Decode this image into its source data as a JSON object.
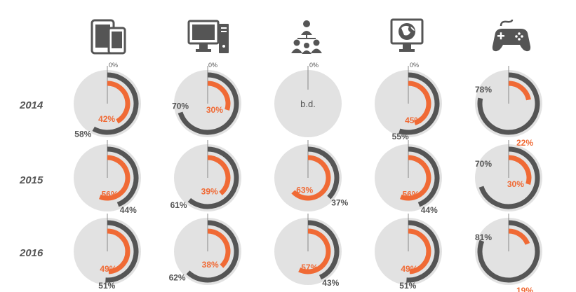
{
  "chart_data": {
    "type": "donut-grid",
    "years": [
      "2014",
      "2015",
      "2016"
    ],
    "columns": [
      {
        "icon": "smartphone-tablet-icon"
      },
      {
        "icon": "desktop-computer-icon"
      },
      {
        "icon": "organization-chart-icon"
      },
      {
        "icon": "monitor-globe-icon"
      },
      {
        "icon": "gamepad-icon"
      }
    ],
    "zero_label": "0%",
    "no_data_label": "b.d.",
    "cells": [
      [
        {
          "orange": 42,
          "dark": 58,
          "orange_label": "42%",
          "dark_label": "58%"
        },
        {
          "orange": 30,
          "dark": 70,
          "orange_label": "30%",
          "dark_label": "70%"
        },
        {
          "no_data": true
        },
        {
          "orange": 45,
          "dark": 55,
          "orange_label": "45%",
          "dark_label": "55%"
        },
        {
          "orange": 22,
          "dark": 78,
          "orange_label": "22%",
          "dark_label": "78%"
        }
      ],
      [
        {
          "orange": 56,
          "dark": 44,
          "orange_label": "56%",
          "dark_label": "44%"
        },
        {
          "orange": 39,
          "dark": 61,
          "orange_label": "39%",
          "dark_label": "61%"
        },
        {
          "orange": 63,
          "dark": 37,
          "orange_label": "63%",
          "dark_label": "37%"
        },
        {
          "orange": 56,
          "dark": 44,
          "orange_label": "56%",
          "dark_label": "44%"
        },
        {
          "orange": 30,
          "dark": 70,
          "orange_label": "30%",
          "dark_label": "70%"
        }
      ],
      [
        {
          "orange": 49,
          "dark": 51,
          "orange_label": "49%",
          "dark_label": "51%"
        },
        {
          "orange": 38,
          "dark": 62,
          "orange_label": "38%",
          "dark_label": "62%"
        },
        {
          "orange": 57,
          "dark": 43,
          "orange_label": "57%",
          "dark_label": "43%"
        },
        {
          "orange": 49,
          "dark": 51,
          "orange_label": "49%",
          "dark_label": "51%"
        },
        {
          "orange": 19,
          "dark": 81,
          "orange_label": "19%",
          "dark_label": "81%"
        }
      ]
    ]
  },
  "colors": {
    "orange": "#f06a35",
    "dark": "#555555",
    "disc": "#e2e2e2",
    "year": "#555555"
  }
}
